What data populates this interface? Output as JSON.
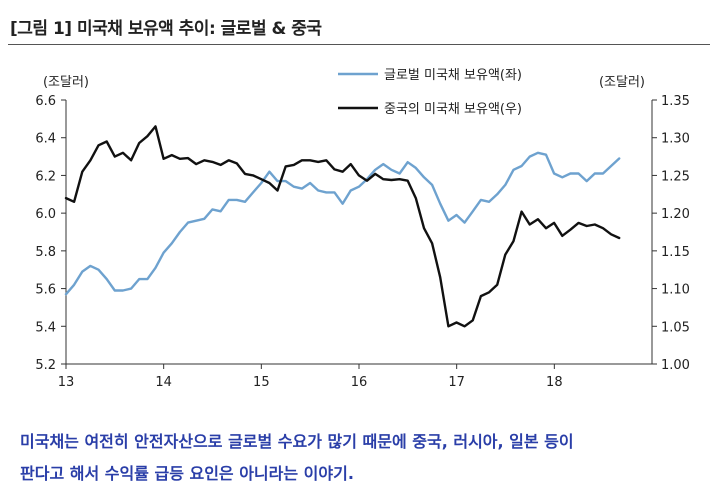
{
  "title": "[그림 1] 미국채 보유액 추이: 글로벌 & 중국",
  "caption": [
    "미국채는 여전히 안전자산으로 글로벌 수요가 많기 때문에 중국, 러시아, 일본 등이",
    "판다고 해서 수익률 급등 요인은 아니라는 이야기."
  ],
  "colors": {
    "global": "#6ea2cf",
    "china": "#111111",
    "caption": "#2a3ea8"
  },
  "chart_data": {
    "type": "line",
    "title": "",
    "xlabel": "",
    "left_unit": "(조달러)",
    "right_unit": "(조달러)",
    "x_ticks": [
      "13",
      "14",
      "15",
      "16",
      "17",
      "18"
    ],
    "xlim": [
      2013.0,
      2019.0
    ],
    "ylim_left": [
      5.2,
      6.6
    ],
    "ylim_right": [
      1.0,
      1.35
    ],
    "left_ticks": [
      "5.2",
      "5.4",
      "5.6",
      "5.8",
      "6.0",
      "6.2",
      "6.4",
      "6.6"
    ],
    "right_ticks": [
      "1.00",
      "1.05",
      "1.10",
      "1.15",
      "1.20",
      "1.25",
      "1.30",
      "1.35"
    ],
    "series": [
      {
        "name": "글로벌 미국채 보유액(좌)",
        "axis": "left",
        "start": 2013.0,
        "step": 0.0833,
        "values": [
          5.57,
          5.62,
          5.69,
          5.72,
          5.7,
          5.65,
          5.59,
          5.59,
          5.6,
          5.65,
          5.65,
          5.71,
          5.79,
          5.84,
          5.9,
          5.95,
          5.96,
          5.97,
          6.02,
          6.01,
          6.07,
          6.07,
          6.06,
          6.11,
          6.16,
          6.22,
          6.17,
          6.17,
          6.14,
          6.13,
          6.16,
          6.12,
          6.11,
          6.11,
          6.05,
          6.12,
          6.14,
          6.18,
          6.23,
          6.26,
          6.23,
          6.21,
          6.27,
          6.24,
          6.19,
          6.15,
          6.05,
          5.96,
          5.99,
          5.95,
          6.01,
          6.07,
          6.06,
          6.1,
          6.15,
          6.23,
          6.25,
          6.3,
          6.32,
          6.31,
          6.21,
          6.19,
          6.21,
          6.21,
          6.17,
          6.21,
          6.21,
          6.25,
          6.29
        ]
      },
      {
        "name": "중국의 미국채 보유액(우)",
        "axis": "right",
        "start": 2013.0,
        "step": 0.0833,
        "values": [
          1.22,
          1.215,
          1.255,
          1.27,
          1.29,
          1.295,
          1.275,
          1.28,
          1.27,
          1.293,
          1.302,
          1.315,
          1.272,
          1.277,
          1.272,
          1.273,
          1.265,
          1.27,
          1.268,
          1.264,
          1.27,
          1.266,
          1.252,
          1.25,
          1.245,
          1.24,
          1.23,
          1.262,
          1.264,
          1.27,
          1.27,
          1.268,
          1.27,
          1.258,
          1.255,
          1.265,
          1.25,
          1.243,
          1.252,
          1.245,
          1.244,
          1.245,
          1.243,
          1.22,
          1.18,
          1.16,
          1.115,
          1.05,
          1.055,
          1.05,
          1.058,
          1.09,
          1.095,
          1.105,
          1.145,
          1.163,
          1.202,
          1.185,
          1.192,
          1.18,
          1.187,
          1.17,
          1.178,
          1.187,
          1.183,
          1.185,
          1.18,
          1.172,
          1.167
        ]
      }
    ],
    "grid": false,
    "legend": "top-right"
  }
}
